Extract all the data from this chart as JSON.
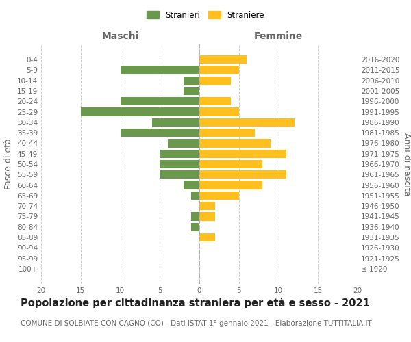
{
  "age_groups": [
    "100+",
    "95-99",
    "90-94",
    "85-89",
    "80-84",
    "75-79",
    "70-74",
    "65-69",
    "60-64",
    "55-59",
    "50-54",
    "45-49",
    "40-44",
    "35-39",
    "30-34",
    "25-29",
    "20-24",
    "15-19",
    "10-14",
    "5-9",
    "0-4"
  ],
  "birth_years": [
    "≤ 1920",
    "1921-1925",
    "1926-1930",
    "1931-1935",
    "1936-1940",
    "1941-1945",
    "1946-1950",
    "1951-1955",
    "1956-1960",
    "1961-1965",
    "1966-1970",
    "1971-1975",
    "1976-1980",
    "1981-1985",
    "1986-1990",
    "1991-1995",
    "1996-2000",
    "2001-2005",
    "2006-2010",
    "2011-2015",
    "2016-2020"
  ],
  "maschi": [
    0,
    0,
    0,
    0,
    1,
    1,
    0,
    1,
    2,
    5,
    5,
    5,
    4,
    10,
    6,
    15,
    10,
    2,
    2,
    10,
    0
  ],
  "femmine": [
    0,
    0,
    0,
    2,
    0,
    2,
    2,
    5,
    8,
    11,
    8,
    11,
    9,
    7,
    12,
    5,
    4,
    0,
    4,
    5,
    6
  ],
  "color_maschi": "#6a994e",
  "color_femmine": "#ffbf1f",
  "title": "Popolazione per cittadinanza straniera per età e sesso - 2021",
  "subtitle": "COMUNE DI SOLBIATE CON CAGNO (CO) - Dati ISTAT 1° gennaio 2021 - Elaborazione TUTTITALIA.IT",
  "ylabel_left": "Fasce di età",
  "ylabel_right": "Anni di nascita",
  "xlabel_left": "Maschi",
  "xlabel_right": "Femmine",
  "legend_maschi": "Stranieri",
  "legend_femmine": "Straniere",
  "xlim": 20,
  "background_color": "#ffffff",
  "grid_color": "#cccccc",
  "bar_height": 0.8,
  "title_fontsize": 10.5,
  "subtitle_fontsize": 7.5,
  "tick_fontsize": 7.5,
  "label_fontsize": 9
}
